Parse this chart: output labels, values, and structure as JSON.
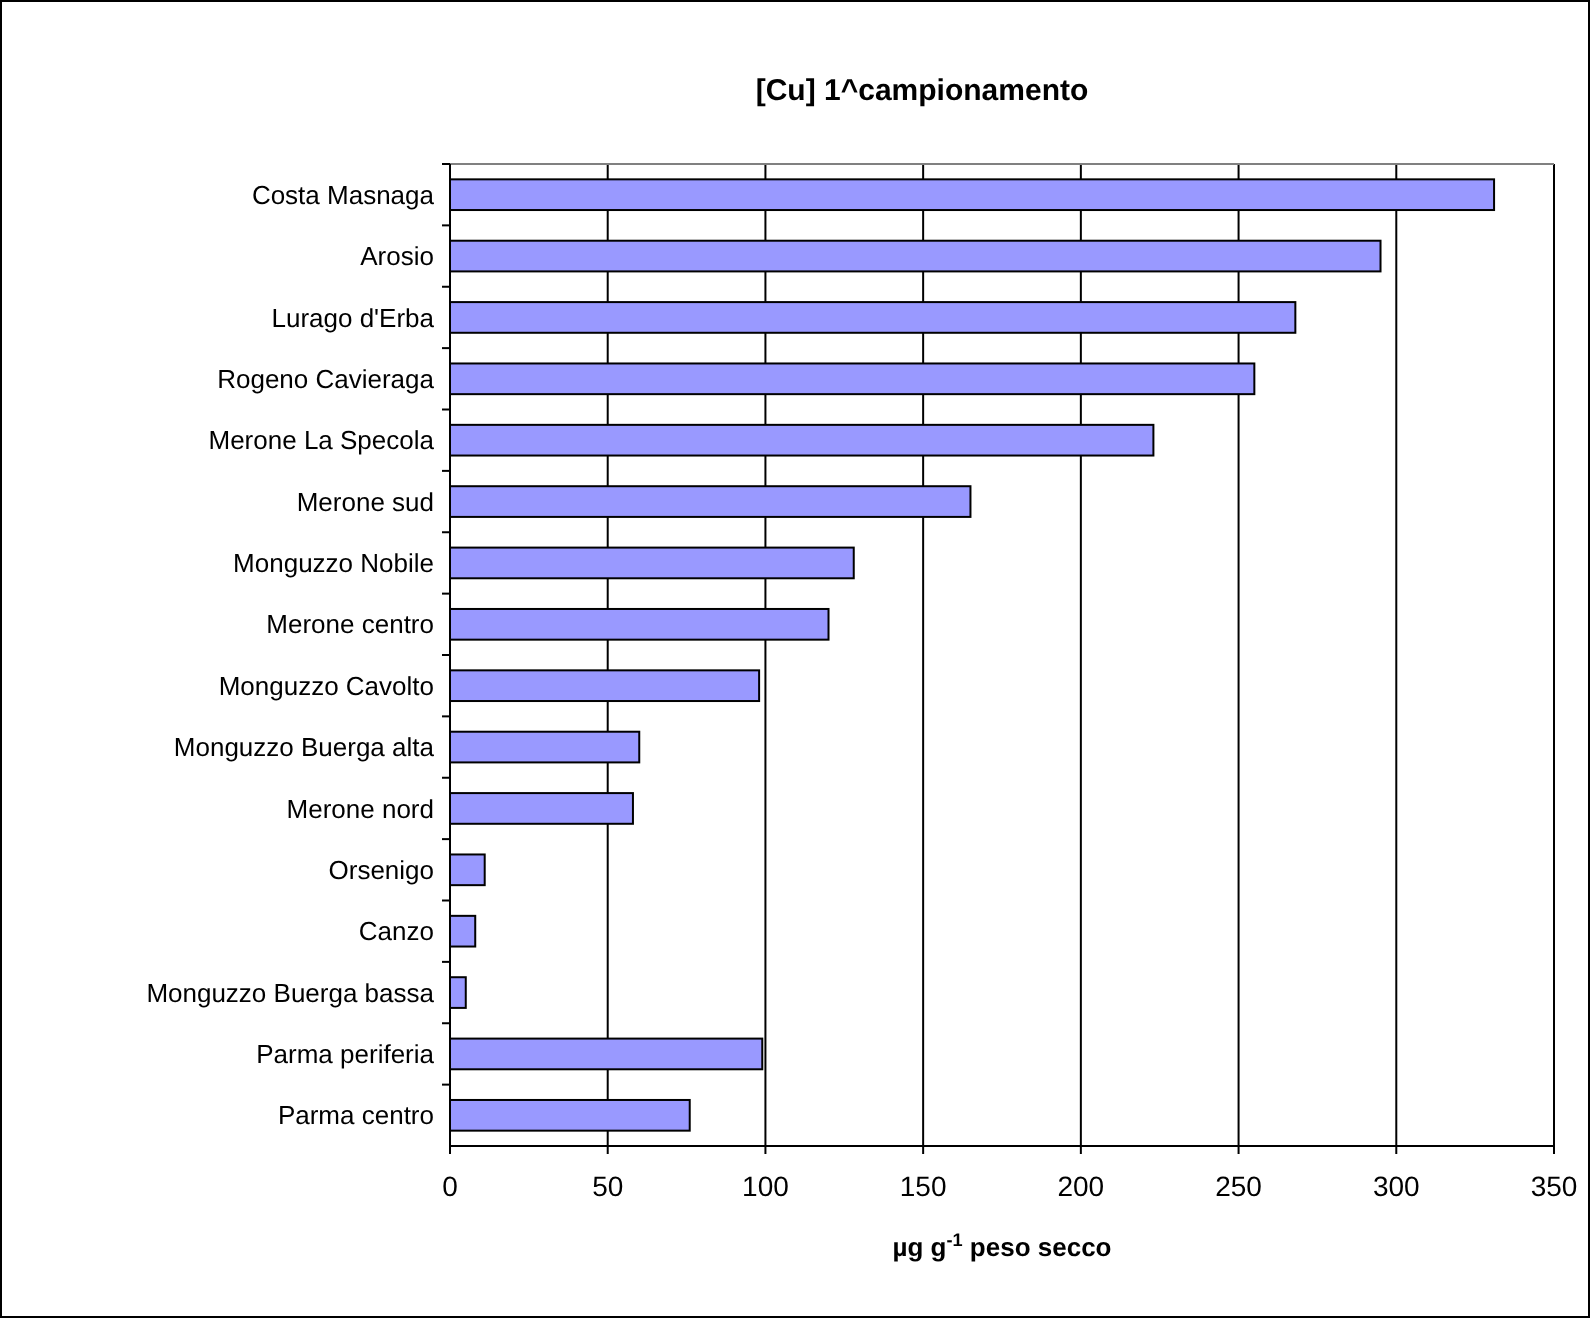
{
  "chart_data": {
    "type": "bar",
    "orientation": "horizontal",
    "title": "[Cu] 1^campionamento",
    "xlabel": "µg g$^{-1}$ peso secco",
    "categories": [
      "Costa Masnaga",
      "Arosio",
      "Lurago d'Erba",
      "Rogeno Cavieraga",
      "Merone La Specola",
      "Merone sud",
      "Monguzzo Nobile",
      "Merone centro",
      "Monguzzo Cavolto",
      "Monguzzo Buerga alta",
      "Merone nord",
      "Orsenigo",
      "Canzo",
      "Monguzzo Buerga bassa",
      "Parma periferia",
      "Parma centro"
    ],
    "values": [
      331,
      295,
      268,
      255,
      223,
      165,
      128,
      120,
      98,
      60,
      58,
      11,
      8,
      5,
      99,
      76
    ],
    "color": "#9999ff",
    "xlim": [
      0,
      350
    ],
    "xticks": [
      0,
      50,
      100,
      150,
      200,
      250,
      300,
      350
    ],
    "grid": "x"
  }
}
